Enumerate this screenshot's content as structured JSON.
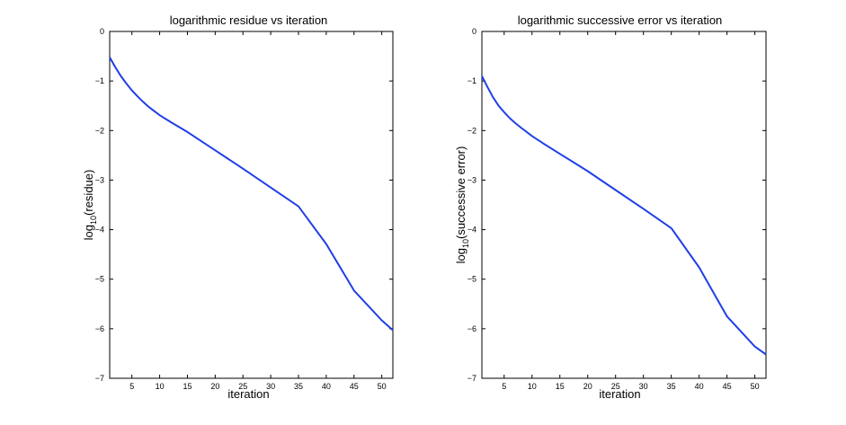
{
  "figure": {
    "background": "#ffffff",
    "line_color": "#1f3fe6",
    "axis_color": "#000000"
  },
  "chart_data": [
    {
      "type": "line",
      "title": "logarithmic residue vs iteration",
      "xlabel": "iteration",
      "ylabel": {
        "base": "log",
        "sub": "10",
        "rest": "(residue)"
      },
      "xlim": [
        1,
        52
      ],
      "ylim": [
        -7,
        0
      ],
      "xticks": [
        5,
        10,
        15,
        20,
        25,
        30,
        35,
        40,
        45,
        50
      ],
      "yticks": [
        0,
        -1,
        -2,
        -3,
        -4,
        -5,
        -6,
        -7
      ],
      "grid": false,
      "series": [
        {
          "color": "#1f3fe6",
          "x": [
            1,
            2,
            3,
            4,
            5,
            6,
            7,
            8,
            10,
            12,
            15,
            20,
            25,
            30,
            35,
            40,
            45,
            50,
            52
          ],
          "y": [
            -0.52,
            -0.72,
            -0.9,
            -1.05,
            -1.19,
            -1.31,
            -1.42,
            -1.52,
            -1.69,
            -1.83,
            -2.03,
            -2.4,
            -2.77,
            -3.15,
            -3.53,
            -4.29,
            -5.23,
            -5.83,
            -6.03
          ]
        }
      ]
    },
    {
      "type": "line",
      "title": "logarithmic successive error vs iteration",
      "xlabel": "iteration",
      "ylabel": {
        "base": "log",
        "sub": "10",
        "rest": "(successive error)"
      },
      "xlim": [
        1,
        52
      ],
      "ylim": [
        -7,
        0
      ],
      "xticks": [
        5,
        10,
        15,
        20,
        25,
        30,
        35,
        40,
        45,
        50
      ],
      "yticks": [
        0,
        -1,
        -2,
        -3,
        -4,
        -5,
        -6,
        -7
      ],
      "grid": false,
      "series": [
        {
          "color": "#1f3fe6",
          "x": [
            1,
            2,
            3,
            4,
            5,
            6,
            7,
            8,
            10,
            12,
            15,
            20,
            25,
            30,
            35,
            40,
            45,
            50,
            52
          ],
          "y": [
            -0.9,
            -1.12,
            -1.33,
            -1.5,
            -1.63,
            -1.75,
            -1.85,
            -1.94,
            -2.11,
            -2.26,
            -2.47,
            -2.82,
            -3.2,
            -3.58,
            -3.97,
            -4.76,
            -5.75,
            -6.36,
            -6.52
          ]
        }
      ]
    }
  ]
}
